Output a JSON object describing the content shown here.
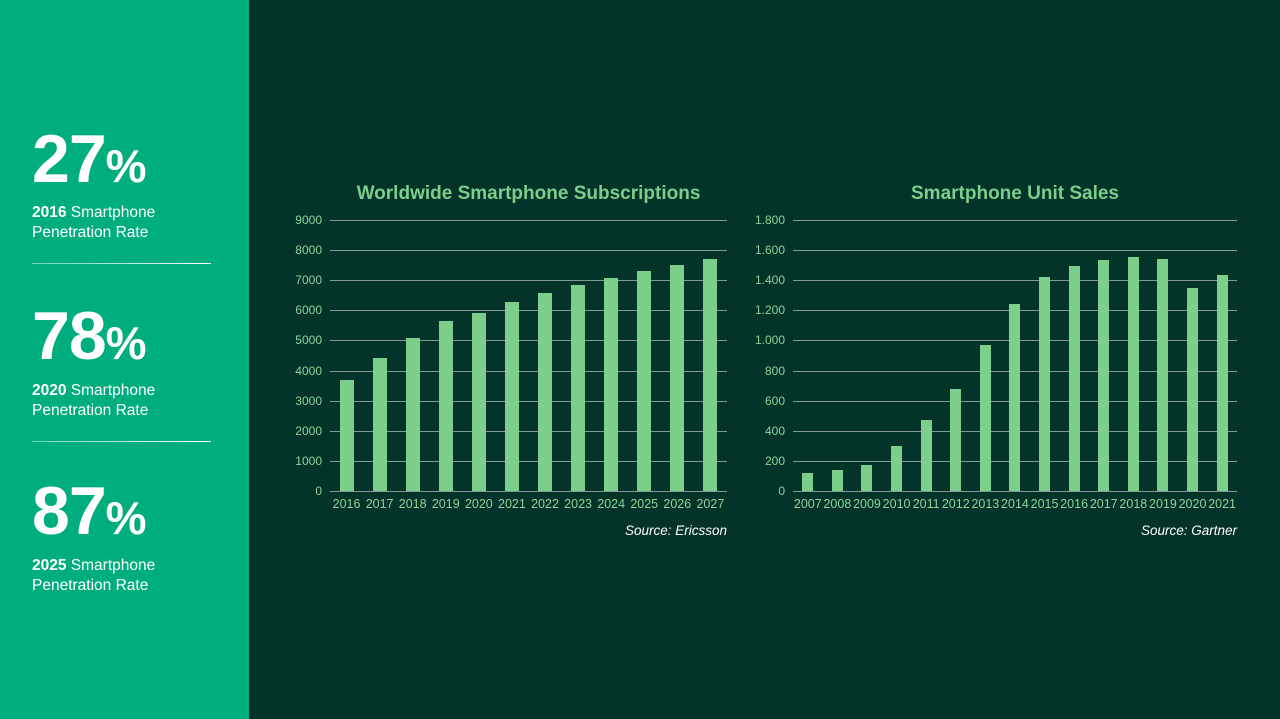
{
  "colors": {
    "sidebar_bg": "#00AE7D",
    "main_bg": "#04332A",
    "bar": "#7CCF8B",
    "title": "#7CCF8B",
    "axis_label": "#8BD59A",
    "gridline": "rgba(255,255,255,0.5)",
    "source_text": "#FFFFFF"
  },
  "sidebar": {
    "stats": [
      {
        "big": "27",
        "pct": "%",
        "year": "2016",
        "line1_rest": " Smartphone",
        "line2": "Penetration Rate"
      },
      {
        "big": "78",
        "pct": "%",
        "year": "2020",
        "line1_rest": " Smartphone",
        "line2": "Penetration Rate"
      },
      {
        "big": "87",
        "pct": "%",
        "year": "2025",
        "line1_rest": " Smartphone",
        "line2": "Penetration Rate"
      }
    ]
  },
  "chart_data": [
    {
      "type": "bar",
      "title": "Worldwide Smartphone Subscriptions",
      "categories": [
        "2016",
        "2017",
        "2018",
        "2019",
        "2020",
        "2021",
        "2022",
        "2023",
        "2024",
        "2025",
        "2026",
        "2027"
      ],
      "values": [
        3680,
        4420,
        5080,
        5650,
        5910,
        6280,
        6580,
        6840,
        7080,
        7300,
        7510,
        7700
      ],
      "xlabel": "",
      "ylabel": "",
      "ylim": [
        0,
        9000
      ],
      "y_ticks": [
        "9000",
        "8000",
        "7000",
        "6000",
        "5000",
        "4000",
        "3000",
        "2000",
        "1000",
        "0"
      ],
      "grid": true,
      "legend": false,
      "source": "Source: Ericsson"
    },
    {
      "type": "bar",
      "title": "Smartphone Unit Sales",
      "categories": [
        "2007",
        "2008",
        "2009",
        "2010",
        "2011",
        "2012",
        "2013",
        "2014",
        "2015",
        "2016",
        "2017",
        "2018",
        "2019",
        "2020",
        "2021"
      ],
      "values": [
        122,
        139,
        172,
        297,
        472,
        680,
        970,
        1245,
        1424,
        1495,
        1537,
        1555,
        1540,
        1350,
        1435
      ],
      "xlabel": "",
      "ylabel": "",
      "ylim": [
        0,
        1800
      ],
      "y_ticks": [
        "1.800",
        "1.600",
        "1.400",
        "1.200",
        "1.000",
        "800",
        "600",
        "400",
        "200",
        "0"
      ],
      "grid": true,
      "legend": false,
      "source": "Source: Gartner"
    }
  ]
}
